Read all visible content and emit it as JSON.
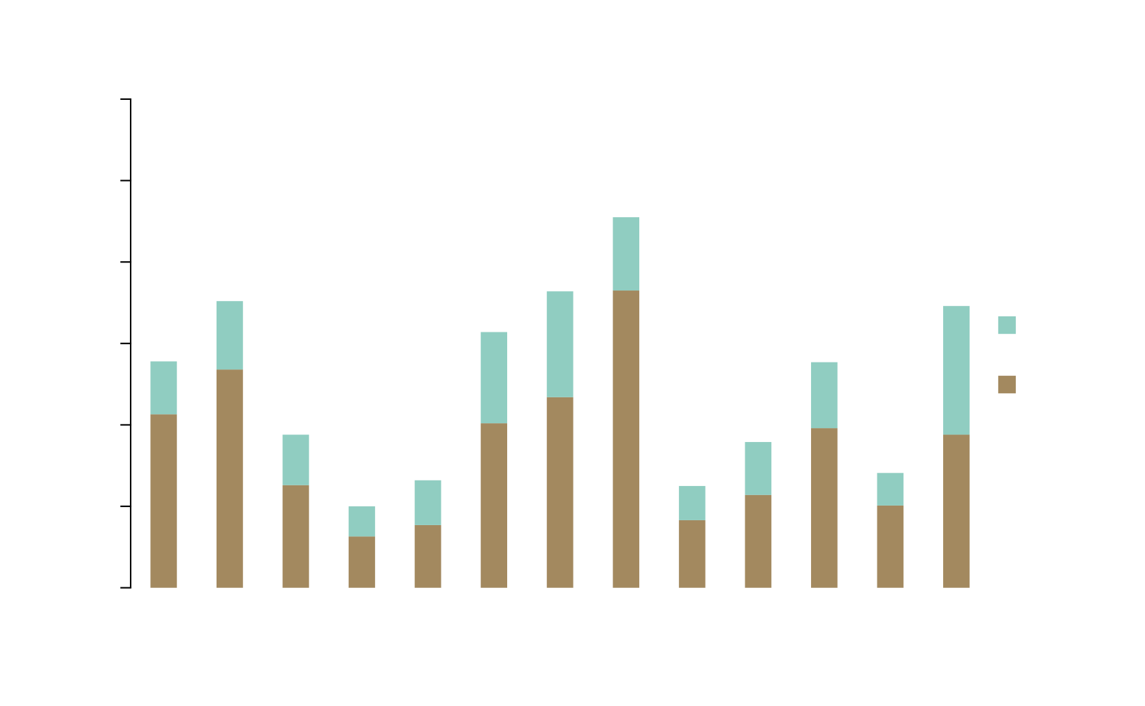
{
  "chart_data": {
    "type": "bar",
    "stacked": true,
    "title": "",
    "xlabel": "",
    "ylabel": "",
    "categories": [
      "",
      "",
      "",
      "",
      "",
      "",
      "",
      "",
      "",
      "",
      "",
      "",
      ""
    ],
    "ylim": [
      0,
      6
    ],
    "yticks": [
      0,
      1,
      2,
      3,
      4,
      5,
      6
    ],
    "grid": false,
    "legend_position": "right",
    "series": [
      {
        "name": "",
        "color": "#a3895f",
        "values": [
          2.13,
          2.68,
          1.26,
          0.63,
          0.77,
          2.02,
          2.34,
          3.65,
          0.83,
          1.14,
          1.96,
          1.01,
          1.88
        ]
      },
      {
        "name": "",
        "color": "#90cdc1",
        "values": [
          0.65,
          0.84,
          0.62,
          0.37,
          0.55,
          1.12,
          1.3,
          0.9,
          0.42,
          0.65,
          0.81,
          0.4,
          1.58
        ]
      }
    ]
  }
}
